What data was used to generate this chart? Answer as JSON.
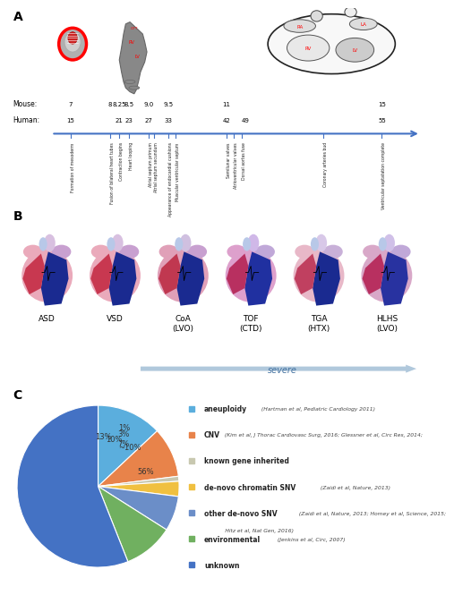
{
  "panel_A_label": "A",
  "panel_B_label": "B",
  "panel_C_label": "C",
  "mouse_vals": [
    7,
    8,
    8.25,
    8.5,
    9.0,
    9.5,
    11,
    15
  ],
  "mouse_labels": [
    "7",
    "8",
    "8.25",
    "8.5",
    "9.0",
    "9.5",
    "11",
    "15"
  ],
  "human_vals": [
    7,
    8.25,
    8.5,
    9.0,
    9.5,
    11.0,
    11.5,
    15
  ],
  "human_labels": [
    "15",
    "21",
    "23",
    "27",
    "33",
    "42",
    "49",
    "55"
  ],
  "event_positions": [
    7.0,
    8.0,
    8.25,
    8.5,
    9.0,
    9.15,
    9.5,
    9.7,
    11.0,
    11.2,
    11.4,
    13.5,
    15.0
  ],
  "event_labels": [
    "Formation of mesoderm",
    "Fusion of bilateral heart tubes",
    "Contraction begins",
    "Heart looping",
    "Atrial septum primum",
    "Atrial septum secundum",
    "Appearance of endocardial cushions",
    "Muscular ventricular septum",
    "Semilunar valves",
    "Atrioventricular valves",
    "Dorsal aortas fuse",
    "Coronary arteries bud",
    "Ventricular septatation complete"
  ],
  "timeline_color": "#4472C4",
  "xmin": 6.5,
  "xmax": 16.0,
  "heart_labels": [
    "ASD",
    "VSD",
    "CoA\n(LVO)",
    "TOF\n(CTD)",
    "TGA\n(HTX)",
    "HLHS\n(LVO)"
  ],
  "pie_slices": [
    13,
    10,
    1,
    3,
    7,
    10,
    56
  ],
  "pie_colors": [
    "#5BAEDD",
    "#E8834A",
    "#C8C8B0",
    "#F0C040",
    "#6B8EC8",
    "#70B060",
    "#4472C4"
  ],
  "pie_pct_labels": [
    "13%",
    "10%",
    "1%",
    "3%",
    "7%",
    "~10%",
    "56%"
  ],
  "legend_colors": [
    "#5BAEDD",
    "#E8834A",
    "#C8C8B0",
    "#F0C040",
    "#6B8EC8",
    "#70B060",
    "#4472C4"
  ],
  "legend_bold": [
    "aneuploidy",
    "CNV",
    "known gene inherited",
    "de-novo chromatin SNV",
    "other de-novo SNV",
    "environmental",
    "unknown"
  ],
  "legend_italic": [
    " (Hartman et al, Pediatric Cardiology 2011)",
    " (Kim et al, J Thorac Cardiovasc Surg, 2016; Glessner et al, Circ Res, 2014;",
    "",
    " (Zaidi et al, Nature, 2013)",
    " (Zaidi et al, Nature, 2013; Homey et al, Science, 2015;",
    " (Jenkins et al, Circ, 2007)",
    ""
  ],
  "legend_italic2": [
    "",
    "",
    "",
    "",
    "     Hitz et al, Nat Gen, 2016)",
    "",
    ""
  ],
  "bg_color": "#FFFFFF"
}
